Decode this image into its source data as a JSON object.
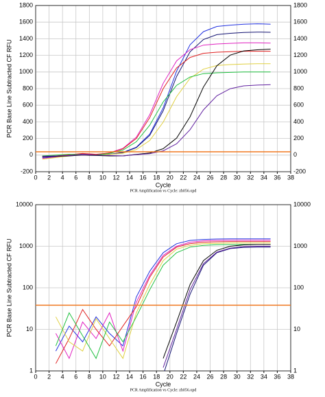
{
  "chart_data": [
    {
      "type": "line",
      "xlabel": "Cycle",
      "ylabel": "PCR Base Line Subtracted CF RFU",
      "subtitle": "PCR Amplification vs Cycle: zh056.opd",
      "log_scale": false,
      "grid": true,
      "xlim": [
        0,
        38
      ],
      "xticks": [
        0,
        2,
        4,
        6,
        8,
        10,
        12,
        14,
        16,
        18,
        20,
        22,
        24,
        26,
        28,
        30,
        32,
        34,
        36,
        38
      ],
      "ylim": [
        -200,
        1800
      ],
      "yticks": [
        -200,
        0,
        200,
        400,
        600,
        800,
        1000,
        1200,
        1400,
        1600,
        1800
      ],
      "threshold": 40,
      "threshold_color": "#f07820",
      "x": [
        1,
        3,
        5,
        7,
        9,
        11,
        13,
        15,
        17,
        19,
        21,
        23,
        25,
        27,
        29,
        31,
        33,
        35
      ],
      "series": [
        {
          "color": "#2030e0",
          "values": [
            -30,
            -20,
            -5,
            10,
            5,
            10,
            32,
            95,
            253,
            569,
            1011,
            1327,
            1485,
            1548,
            1564,
            1575,
            1580,
            1575
          ]
        },
        {
          "color": "#101070",
          "values": [
            -10,
            -15,
            0,
            15,
            5,
            10,
            30,
            89,
            237,
            533,
            947,
            1243,
            1391,
            1450,
            1465,
            1475,
            1480,
            1478
          ]
        },
        {
          "color": "#e020c0",
          "values": [
            -40,
            -25,
            -5,
            10,
            0,
            27,
            81,
            216,
            486,
            864,
            1134,
            1269,
            1323,
            1337,
            1345,
            1350,
            1350,
            1348
          ]
        },
        {
          "color": "#e02020",
          "values": [
            -20,
            -10,
            5,
            20,
            10,
            25,
            75,
            200,
            450,
            800,
            1050,
            1175,
            1225,
            1238,
            1245,
            1250,
            1250,
            1250
          ]
        },
        {
          "color": "#e0d040",
          "values": [
            -50,
            -30,
            -10,
            5,
            0,
            8,
            22,
            66,
            176,
            396,
            704,
            924,
            1034,
            1078,
            1089,
            1095,
            1100,
            1100
          ]
        },
        {
          "color": "#20c040",
          "values": [
            -10,
            0,
            10,
            5,
            0,
            20,
            60,
            160,
            360,
            640,
            840,
            940,
            980,
            990,
            995,
            1000,
            1000,
            1000
          ]
        },
        {
          "color": "#000000",
          "values": [
            -20,
            -15,
            -10,
            0,
            -5,
            -10,
            -10,
            9,
            26,
            77,
            205,
            461,
            819,
            1075,
            1203,
            1254,
            1267,
            1275
          ]
        },
        {
          "color": "#6020a0",
          "values": [
            -15,
            -10,
            -5,
            5,
            0,
            -5,
            -10,
            6,
            17,
            51,
            136,
            306,
            544,
            714,
            799,
            833,
            842,
            848
          ]
        }
      ]
    },
    {
      "type": "line",
      "xlabel": "Cycle",
      "ylabel": "PCR Base Line Subtracted CF RFU",
      "subtitle": "PCR Amplification vs Cycle: zh056.opd",
      "log_scale": true,
      "grid": true,
      "xlim": [
        0,
        38
      ],
      "xticks": [
        0,
        2,
        4,
        6,
        8,
        10,
        12,
        14,
        16,
        18,
        20,
        22,
        24,
        26,
        28,
        30,
        32,
        34,
        36,
        38
      ],
      "ylim": [
        1,
        10000
      ],
      "yticks": [
        1,
        10,
        100,
        1000,
        10000
      ],
      "threshold": 38,
      "threshold_color": "#f07820",
      "x": [
        1,
        3,
        5,
        7,
        9,
        11,
        13,
        15,
        17,
        19,
        21,
        23,
        25,
        27,
        29,
        31,
        33,
        35
      ],
      "series": [
        {
          "color": "#2030e0",
          "values": [
            null,
            3,
            12,
            5,
            20,
            8,
            4,
            60,
            250,
            700,
            1150,
            1380,
            1460,
            1490,
            1500,
            1500,
            1500,
            1500
          ]
        },
        {
          "color": "#e020c0",
          "values": [
            null,
            8,
            2,
            15,
            6,
            25,
            3,
            45,
            200,
            600,
            1000,
            1250,
            1350,
            1380,
            1400,
            1400,
            1400,
            1400
          ]
        },
        {
          "color": "#e02020",
          "values": [
            null,
            1.5,
            6,
            30,
            10,
            4,
            12,
            35,
            180,
            550,
            950,
            1150,
            1250,
            1280,
            1300,
            1300,
            1300,
            1300
          ]
        },
        {
          "color": "#e0d040",
          "values": [
            null,
            20,
            5,
            3,
            18,
            6,
            2,
            25,
            120,
            450,
            850,
            1050,
            1150,
            1180,
            1200,
            1200,
            1200,
            1200
          ]
        },
        {
          "color": "#20c040",
          "values": [
            null,
            4,
            25,
            7,
            2,
            15,
            5,
            20,
            90,
            350,
            700,
            950,
            1050,
            1090,
            1100,
            1100,
            1100,
            1100
          ]
        },
        {
          "color": "#000000",
          "values": [
            null,
            null,
            null,
            null,
            null,
            null,
            null,
            null,
            null,
            2,
            15,
            120,
            450,
            800,
            1000,
            1080,
            1100,
            1100
          ]
        },
        {
          "color": "#101070",
          "values": [
            null,
            null,
            null,
            null,
            null,
            null,
            null,
            null,
            null,
            0.8,
            8,
            70,
            350,
            700,
            880,
            940,
            950,
            950
          ]
        },
        {
          "color": "#6020a0",
          "values": [
            null,
            null,
            null,
            null,
            null,
            null,
            null,
            null,
            null,
            1.2,
            10,
            90,
            380,
            720,
            900,
            980,
            1000,
            1000
          ]
        }
      ]
    }
  ]
}
